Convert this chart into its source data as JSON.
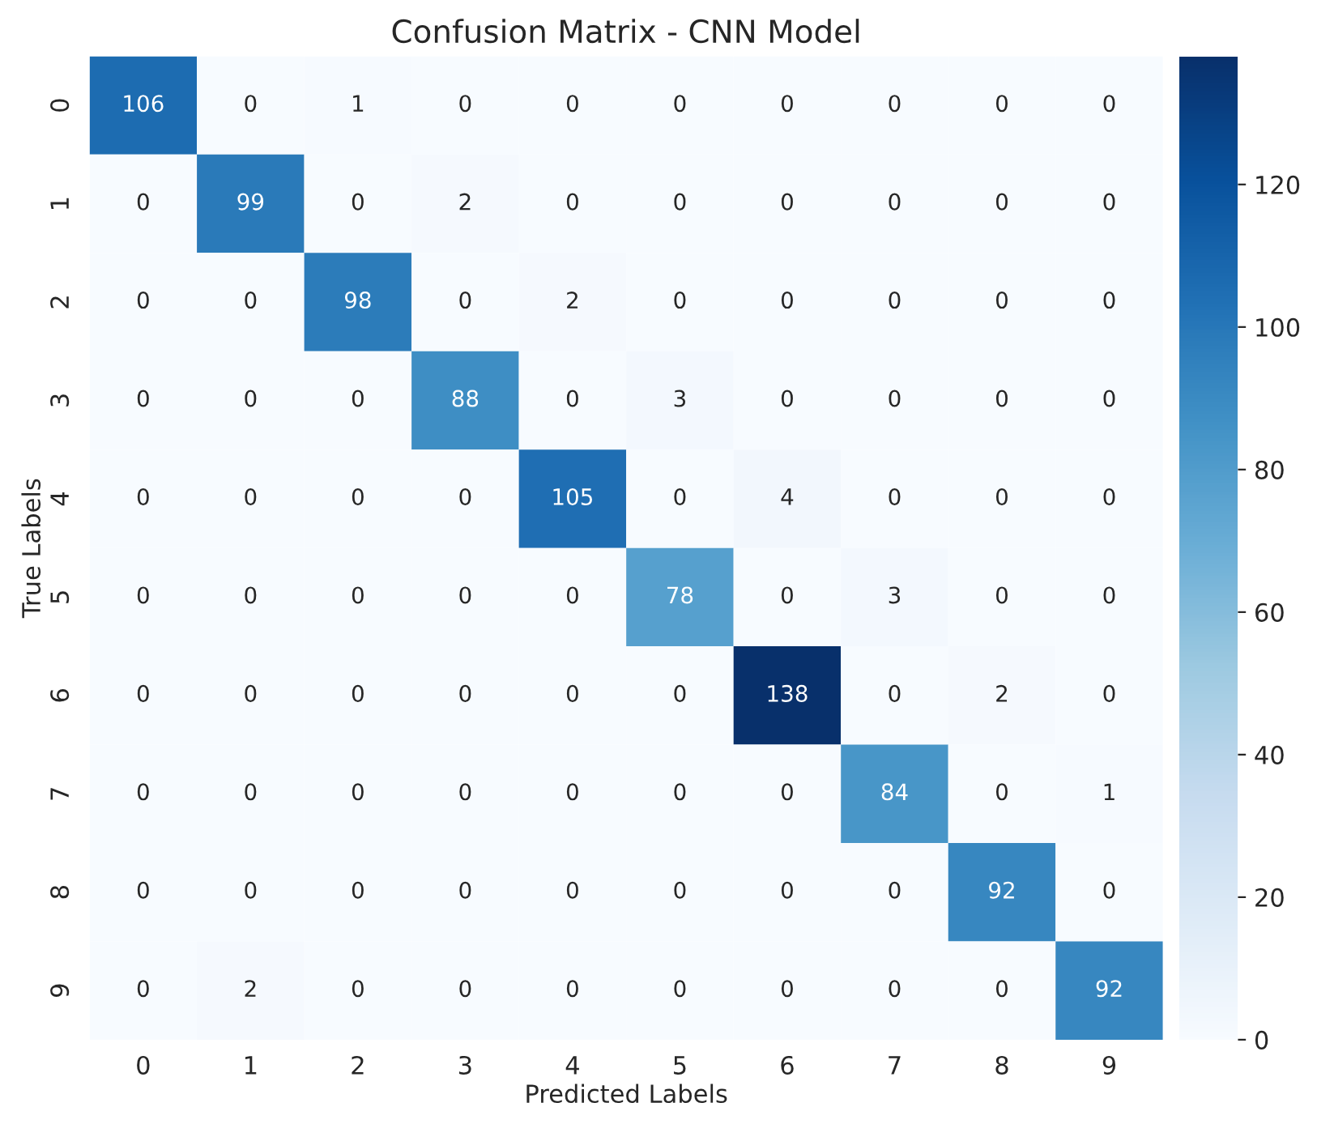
{
  "chart_data": {
    "type": "heatmap",
    "title": "Confusion Matrix - CNN Model",
    "xlabel": "Predicted Labels",
    "ylabel": "True Labels",
    "categories": [
      "0",
      "1",
      "2",
      "3",
      "4",
      "5",
      "6",
      "7",
      "8",
      "9"
    ],
    "y_categories": [
      "0",
      "1",
      "2",
      "3",
      "4",
      "5",
      "6",
      "7",
      "8",
      "9"
    ],
    "cells": [
      [
        106,
        0,
        1,
        0,
        0,
        0,
        0,
        0,
        0,
        0
      ],
      [
        0,
        99,
        0,
        2,
        0,
        0,
        0,
        0,
        0,
        0
      ],
      [
        0,
        0,
        98,
        0,
        2,
        0,
        0,
        0,
        0,
        0
      ],
      [
        0,
        0,
        0,
        88,
        0,
        3,
        0,
        0,
        0,
        0
      ],
      [
        0,
        0,
        0,
        0,
        105,
        0,
        4,
        0,
        0,
        0
      ],
      [
        0,
        0,
        0,
        0,
        0,
        78,
        0,
        3,
        0,
        0
      ],
      [
        0,
        0,
        0,
        0,
        0,
        0,
        138,
        0,
        2,
        0
      ],
      [
        0,
        0,
        0,
        0,
        0,
        0,
        0,
        84,
        0,
        1
      ],
      [
        0,
        0,
        0,
        0,
        0,
        0,
        0,
        0,
        92,
        0
      ],
      [
        0,
        2,
        0,
        0,
        0,
        0,
        0,
        0,
        0,
        92
      ]
    ],
    "clim": [
      0,
      138
    ],
    "cticks": [
      0,
      20,
      40,
      60,
      80,
      100,
      120
    ],
    "data_labels": true
  }
}
